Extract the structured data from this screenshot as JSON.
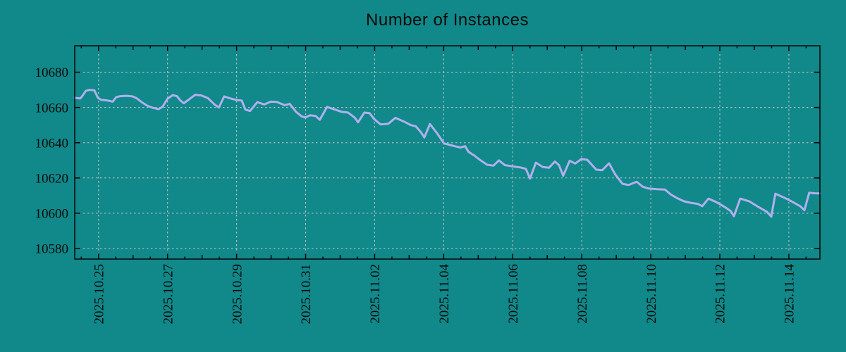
{
  "chart_data": {
    "type": "line",
    "title": "Number of Instances",
    "xlabel": "",
    "ylabel": "",
    "grid": true,
    "legend": false,
    "xlim": [
      0.31,
      21.9
    ],
    "ylim": [
      10574,
      10695
    ],
    "x_axis": {
      "unit": "days since 2025-10-24 00:00",
      "tick_labels": [
        {
          "t": 1,
          "label": "2025.10.25"
        },
        {
          "t": 3,
          "label": "2025.10.27"
        },
        {
          "t": 5,
          "label": "2025.10.29"
        },
        {
          "t": 7,
          "label": "2025.10.31"
        },
        {
          "t": 9,
          "label": "2025.11.02"
        },
        {
          "t": 11,
          "label": "2025.11.04"
        },
        {
          "t": 13,
          "label": "2025.11.06"
        },
        {
          "t": 15,
          "label": "2025.11.08"
        },
        {
          "t": 17,
          "label": "2025.11.10"
        },
        {
          "t": 19,
          "label": "2025.11.12"
        },
        {
          "t": 21,
          "label": "2025.11.14"
        }
      ],
      "minor_tick_step": 0.5
    },
    "y_axis": {
      "tick_values": [
        10580,
        10600,
        10620,
        10640,
        10660,
        10680
      ]
    },
    "series": [
      {
        "points": [
          [
            0.31,
            10665.5
          ],
          [
            0.39,
            10665.3
          ],
          [
            0.47,
            10665.1
          ],
          [
            0.55,
            10667.0
          ],
          [
            0.63,
            10669.4
          ],
          [
            0.75,
            10670.0
          ],
          [
            0.88,
            10669.7
          ],
          [
            0.98,
            10665.5
          ],
          [
            1.08,
            10664.3
          ],
          [
            1.2,
            10664.1
          ],
          [
            1.33,
            10663.7
          ],
          [
            1.41,
            10663.3
          ],
          [
            1.51,
            10665.8
          ],
          [
            1.63,
            10666.4
          ],
          [
            1.82,
            10666.6
          ],
          [
            1.98,
            10666.3
          ],
          [
            2.1,
            10665.3
          ],
          [
            2.25,
            10663.0
          ],
          [
            2.41,
            10661.0
          ],
          [
            2.57,
            10659.8
          ],
          [
            2.74,
            10659.0
          ],
          [
            2.86,
            10660.5
          ],
          [
            3.0,
            10665.0
          ],
          [
            3.15,
            10667.0
          ],
          [
            3.27,
            10666.4
          ],
          [
            3.37,
            10664.0
          ],
          [
            3.47,
            10662.4
          ],
          [
            3.64,
            10664.8
          ],
          [
            3.8,
            10667.2
          ],
          [
            3.98,
            10666.8
          ],
          [
            4.17,
            10665.3
          ],
          [
            4.37,
            10661.5
          ],
          [
            4.49,
            10660.0
          ],
          [
            4.64,
            10666.3
          ],
          [
            4.8,
            10665.2
          ],
          [
            5.0,
            10664.2
          ],
          [
            5.15,
            10663.9
          ],
          [
            5.25,
            10658.8
          ],
          [
            5.39,
            10658.0
          ],
          [
            5.6,
            10663.0
          ],
          [
            5.8,
            10661.7
          ],
          [
            5.99,
            10663.3
          ],
          [
            6.17,
            10663.1
          ],
          [
            6.39,
            10661.3
          ],
          [
            6.54,
            10662.0
          ],
          [
            6.72,
            10657.6
          ],
          [
            6.88,
            10655.0
          ],
          [
            6.99,
            10654.3
          ],
          [
            7.13,
            10655.6
          ],
          [
            7.29,
            10655.2
          ],
          [
            7.41,
            10653.0
          ],
          [
            7.62,
            10660.3
          ],
          [
            7.84,
            10658.9
          ],
          [
            8.03,
            10657.6
          ],
          [
            8.23,
            10657.1
          ],
          [
            8.42,
            10654.3
          ],
          [
            8.52,
            10651.6
          ],
          [
            8.7,
            10657.1
          ],
          [
            8.85,
            10656.8
          ],
          [
            8.99,
            10653.3
          ],
          [
            9.17,
            10650.4
          ],
          [
            9.4,
            10650.8
          ],
          [
            9.6,
            10654.1
          ],
          [
            9.85,
            10652.0
          ],
          [
            10.05,
            10650.0
          ],
          [
            10.19,
            10649.3
          ],
          [
            10.34,
            10646.0
          ],
          [
            10.44,
            10643.0
          ],
          [
            10.6,
            10650.6
          ],
          [
            10.81,
            10645.3
          ],
          [
            11.01,
            10639.6
          ],
          [
            11.15,
            10638.9
          ],
          [
            11.32,
            10638.0
          ],
          [
            11.48,
            10637.3
          ],
          [
            11.62,
            10638.0
          ],
          [
            11.72,
            10634.8
          ],
          [
            11.89,
            10632.7
          ],
          [
            12.07,
            10630.0
          ],
          [
            12.26,
            10627.5
          ],
          [
            12.44,
            10627.0
          ],
          [
            12.6,
            10630.0
          ],
          [
            12.77,
            10627.3
          ],
          [
            12.99,
            10626.6
          ],
          [
            13.22,
            10626.0
          ],
          [
            13.38,
            10625.2
          ],
          [
            13.5,
            10619.7
          ],
          [
            13.67,
            10628.7
          ],
          [
            13.87,
            10626.2
          ],
          [
            14.05,
            10625.8
          ],
          [
            14.22,
            10629.3
          ],
          [
            14.34,
            10627.3
          ],
          [
            14.46,
            10621.3
          ],
          [
            14.65,
            10629.8
          ],
          [
            14.81,
            10628.2
          ],
          [
            14.99,
            10630.8
          ],
          [
            15.16,
            10630.3
          ],
          [
            15.42,
            10624.7
          ],
          [
            15.59,
            10624.4
          ],
          [
            15.79,
            10628.3
          ],
          [
            15.97,
            10622.0
          ],
          [
            16.18,
            10616.7
          ],
          [
            16.36,
            10616.0
          ],
          [
            16.59,
            10617.9
          ],
          [
            16.77,
            10615.0
          ],
          [
            16.94,
            10614.0
          ],
          [
            17.18,
            10613.6
          ],
          [
            17.41,
            10613.4
          ],
          [
            17.59,
            10610.5
          ],
          [
            17.75,
            10608.7
          ],
          [
            17.96,
            10606.8
          ],
          [
            18.16,
            10605.9
          ],
          [
            18.36,
            10605.3
          ],
          [
            18.49,
            10604.0
          ],
          [
            18.67,
            10608.3
          ],
          [
            18.9,
            10606.3
          ],
          [
            19.16,
            10603.3
          ],
          [
            19.31,
            10601.3
          ],
          [
            19.41,
            10598.3
          ],
          [
            19.59,
            10608.3
          ],
          [
            19.86,
            10606.7
          ],
          [
            20.14,
            10603.3
          ],
          [
            20.37,
            10600.7
          ],
          [
            20.49,
            10598.1
          ],
          [
            20.61,
            10611.1
          ],
          [
            20.88,
            10608.7
          ],
          [
            21.08,
            10606.7
          ],
          [
            21.33,
            10604.0
          ],
          [
            21.45,
            10601.7
          ],
          [
            21.59,
            10611.6
          ],
          [
            21.76,
            10611.3
          ],
          [
            21.9,
            10611.2
          ]
        ]
      }
    ]
  },
  "colors": {
    "background": "#118889",
    "line": "#b1b0ef",
    "grid": "#c9c9c9",
    "axis": "#050505",
    "text": "#0a0a0a"
  }
}
